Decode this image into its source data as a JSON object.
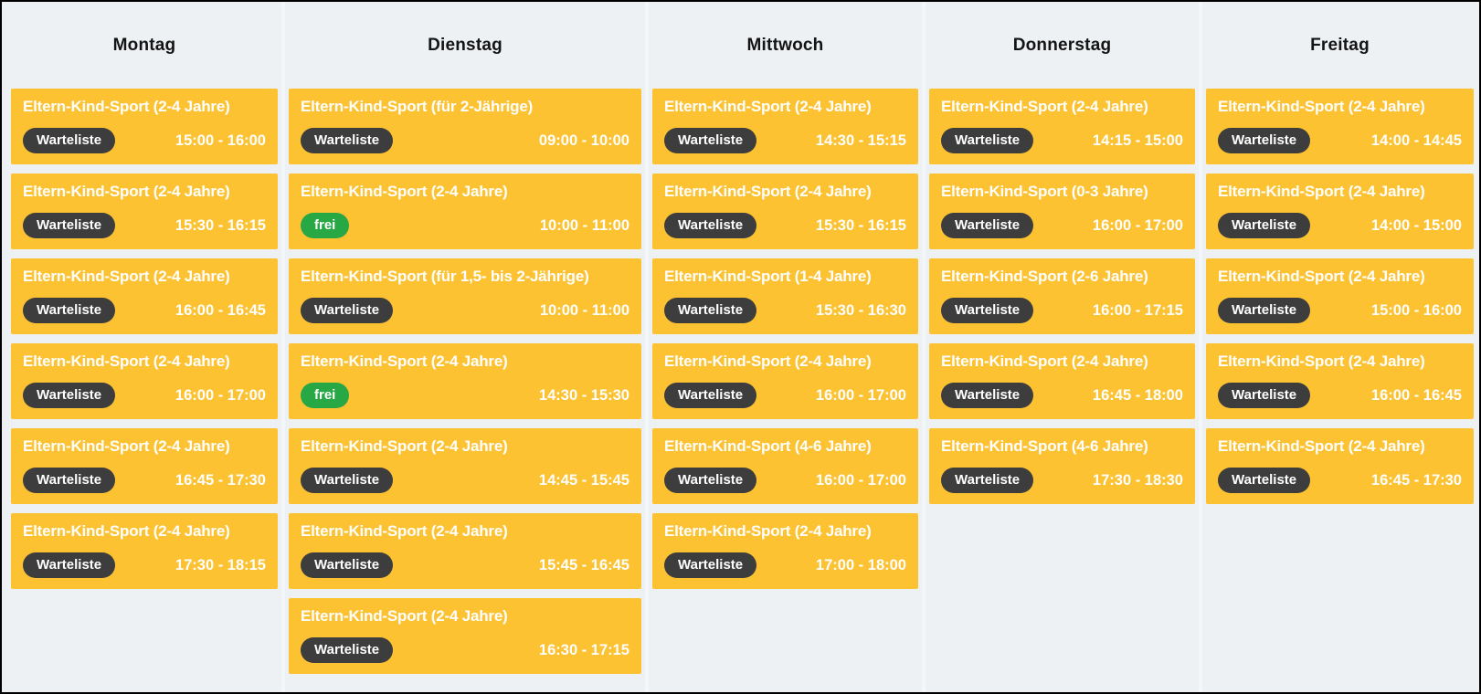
{
  "legend": {
    "waitlist_label": "Warteliste",
    "free_label": "frei"
  },
  "colors": {
    "page_bg": "#edf1f4",
    "separator": "#f4f7f9",
    "card_bg": "#fcc232",
    "card_text": "#ffffff",
    "badge_waitlist": "#3d3d3d",
    "badge_free": "#28a745",
    "header_text": "#141414",
    "border": "#000000"
  },
  "days": [
    {
      "label": "Montag",
      "events": [
        {
          "title": "Eltern-Kind-Sport (2-4 Jahre)",
          "status": "Warteliste",
          "time": "15:00 - 16:00"
        },
        {
          "title": "Eltern-Kind-Sport (2-4 Jahre)",
          "status": "Warteliste",
          "time": "15:30 - 16:15"
        },
        {
          "title": "Eltern-Kind-Sport (2-4 Jahre)",
          "status": "Warteliste",
          "time": "16:00 - 16:45"
        },
        {
          "title": "Eltern-Kind-Sport (2-4 Jahre)",
          "status": "Warteliste",
          "time": "16:00 - 17:00"
        },
        {
          "title": "Eltern-Kind-Sport (2-4 Jahre)",
          "status": "Warteliste",
          "time": "16:45 - 17:30"
        },
        {
          "title": "Eltern-Kind-Sport (2-4 Jahre)",
          "status": "Warteliste",
          "time": "17:30 - 18:15"
        }
      ]
    },
    {
      "label": "Dienstag",
      "events": [
        {
          "title": "Eltern-Kind-Sport (für 2-Jährige)",
          "status": "Warteliste",
          "time": "09:00 - 10:00"
        },
        {
          "title": "Eltern-Kind-Sport (2-4 Jahre)",
          "status": "frei",
          "time": "10:00 - 11:00"
        },
        {
          "title": "Eltern-Kind-Sport (für 1,5- bis 2-Jährige)",
          "status": "Warteliste",
          "time": "10:00 - 11:00"
        },
        {
          "title": "Eltern-Kind-Sport (2-4 Jahre)",
          "status": "frei",
          "time": "14:30 - 15:30"
        },
        {
          "title": "Eltern-Kind-Sport (2-4 Jahre)",
          "status": "Warteliste",
          "time": "14:45 - 15:45"
        },
        {
          "title": "Eltern-Kind-Sport (2-4 Jahre)",
          "status": "Warteliste",
          "time": "15:45 - 16:45"
        },
        {
          "title": "Eltern-Kind-Sport (2-4 Jahre)",
          "status": "Warteliste",
          "time": "16:30 - 17:15"
        }
      ]
    },
    {
      "label": "Mittwoch",
      "events": [
        {
          "title": "Eltern-Kind-Sport (2-4 Jahre)",
          "status": "Warteliste",
          "time": "14:30 - 15:15"
        },
        {
          "title": "Eltern-Kind-Sport (2-4 Jahre)",
          "status": "Warteliste",
          "time": "15:30 - 16:15"
        },
        {
          "title": "Eltern-Kind-Sport (1-4 Jahre)",
          "status": "Warteliste",
          "time": "15:30 - 16:30"
        },
        {
          "title": "Eltern-Kind-Sport (2-4 Jahre)",
          "status": "Warteliste",
          "time": "16:00 - 17:00"
        },
        {
          "title": "Eltern-Kind-Sport (4-6 Jahre)",
          "status": "Warteliste",
          "time": "16:00 - 17:00"
        },
        {
          "title": "Eltern-Kind-Sport (2-4 Jahre)",
          "status": "Warteliste",
          "time": "17:00 - 18:00"
        }
      ]
    },
    {
      "label": "Donnerstag",
      "events": [
        {
          "title": "Eltern-Kind-Sport (2-4 Jahre)",
          "status": "Warteliste",
          "time": "14:15 - 15:00"
        },
        {
          "title": "Eltern-Kind-Sport (0-3 Jahre)",
          "status": "Warteliste",
          "time": "16:00 - 17:00"
        },
        {
          "title": "Eltern-Kind-Sport (2-6 Jahre)",
          "status": "Warteliste",
          "time": "16:00 - 17:15"
        },
        {
          "title": "Eltern-Kind-Sport (2-4 Jahre)",
          "status": "Warteliste",
          "time": "16:45 - 18:00"
        },
        {
          "title": "Eltern-Kind-Sport (4-6 Jahre)",
          "status": "Warteliste",
          "time": "17:30 - 18:30"
        }
      ]
    },
    {
      "label": "Freitag",
      "events": [
        {
          "title": "Eltern-Kind-Sport (2-4 Jahre)",
          "status": "Warteliste",
          "time": "14:00 - 14:45"
        },
        {
          "title": "Eltern-Kind-Sport (2-4 Jahre)",
          "status": "Warteliste",
          "time": "14:00 - 15:00"
        },
        {
          "title": "Eltern-Kind-Sport (2-4 Jahre)",
          "status": "Warteliste",
          "time": "15:00 - 16:00"
        },
        {
          "title": "Eltern-Kind-Sport (2-4 Jahre)",
          "status": "Warteliste",
          "time": "16:00 - 16:45"
        },
        {
          "title": "Eltern-Kind-Sport (2-4 Jahre)",
          "status": "Warteliste",
          "time": "16:45 - 17:30"
        }
      ]
    }
  ]
}
